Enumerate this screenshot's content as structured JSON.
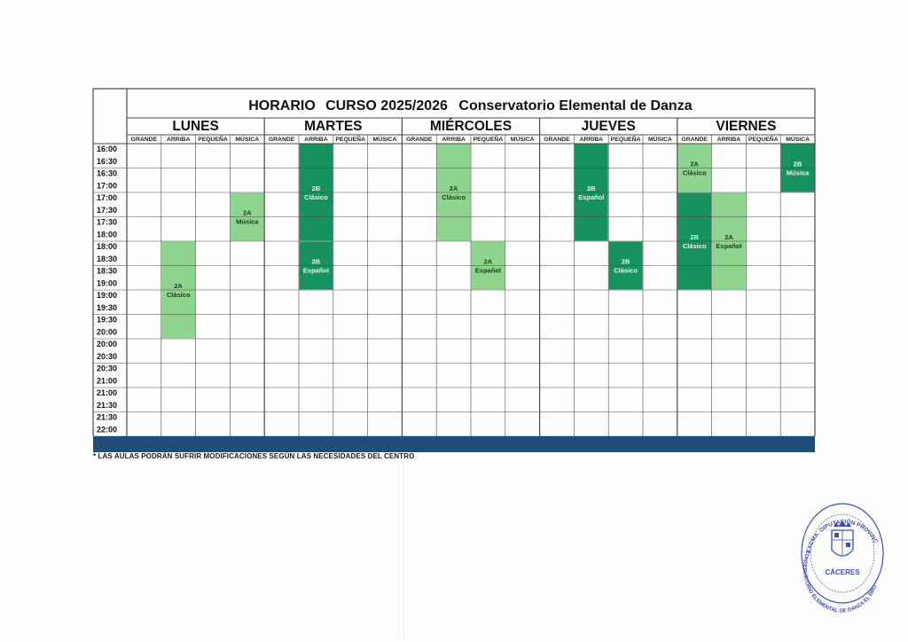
{
  "header": {
    "horario": "HORARIO",
    "curso": "CURSO 2025/2026",
    "centro": "Conservatorio Elemental de Danza"
  },
  "days": [
    "LUNES",
    "MARTES",
    "MIÉRCOLES",
    "JUEVES",
    "VIERNES"
  ],
  "rooms": [
    "GRANDE",
    "ARRIBA",
    "PEQUEÑA",
    "MÚSICA"
  ],
  "time_rows": [
    [
      "16:00",
      "16:30"
    ],
    [
      "16:30",
      "17:00"
    ],
    [
      "17:00",
      "17:30"
    ],
    [
      "17:30",
      "18:00"
    ],
    [
      "18:00",
      "18:30"
    ],
    [
      "18:30",
      "19:00"
    ],
    [
      "19:00",
      "19:30"
    ],
    [
      "19:30",
      "20:00"
    ],
    [
      "20:00",
      "20:30"
    ],
    [
      "20:30",
      "21:00"
    ],
    [
      "21:00",
      "21:30"
    ],
    [
      "21:30",
      "22:00"
    ]
  ],
  "classes": [
    {
      "day": 0,
      "room": 1,
      "start": "18:00",
      "end": "20:00",
      "group": "2A",
      "subject": "Clásico",
      "color": "#8ed48e"
    },
    {
      "day": 0,
      "room": 3,
      "start": "17:00",
      "end": "18:00",
      "group": "2A",
      "subject": "Música",
      "color": "#8ed48e"
    },
    {
      "day": 1,
      "room": 1,
      "start": "16:00",
      "end": "18:00",
      "group": "2B",
      "subject": "Clásico",
      "color": "#17915e"
    },
    {
      "day": 1,
      "room": 1,
      "start": "18:00",
      "end": "19:00",
      "group": "2B",
      "subject": "Español",
      "color": "#17915e"
    },
    {
      "day": 2,
      "room": 1,
      "start": "16:00",
      "end": "18:00",
      "group": "2A",
      "subject": "Clásico",
      "color": "#8ed48e"
    },
    {
      "day": 2,
      "room": 2,
      "start": "18:00",
      "end": "19:00",
      "group": "2A",
      "subject": "Español",
      "color": "#8ed48e"
    },
    {
      "day": 3,
      "room": 1,
      "start": "16:00",
      "end": "18:00",
      "group": "2B",
      "subject": "Español",
      "color": "#17915e"
    },
    {
      "day": 3,
      "room": 2,
      "start": "18:00",
      "end": "19:00",
      "group": "2B",
      "subject": "Clásico",
      "color": "#17915e"
    },
    {
      "day": 4,
      "room": 0,
      "start": "16:00",
      "end": "17:00",
      "group": "2A",
      "subject": "Clásico",
      "color": "#8ed48e"
    },
    {
      "day": 4,
      "room": 3,
      "start": "16:00",
      "end": "17:00",
      "group": "2B",
      "subject": "Música",
      "color": "#17915e"
    },
    {
      "day": 4,
      "room": 0,
      "start": "17:00",
      "end": "19:00",
      "group": "2B",
      "subject": "Clásico",
      "color": "#17915e"
    },
    {
      "day": 4,
      "room": 1,
      "start": "17:00",
      "end": "19:00",
      "group": "2A",
      "subject": "Español",
      "color": "#8ed48e"
    }
  ],
  "colors": {
    "grid_line": "#4a4a4a",
    "footer_bar": "#1f4e79",
    "stamp_ink": "#3a4fb5"
  },
  "footnote": "* LAS AULAS PODRÁN SUFRIR MODIFICACIONES SEGÚN LAS NECESIDADES DEL CENTRO",
  "stamp": {
    "ring_text": "EXCMA. DIPUTACIÓN PROVINCIAL · CONSERVATORIO ELEMENTAL DE DANZA EL BROCENSE",
    "city": "CÁCERES",
    "icon": "coat-of-arms-icon"
  }
}
